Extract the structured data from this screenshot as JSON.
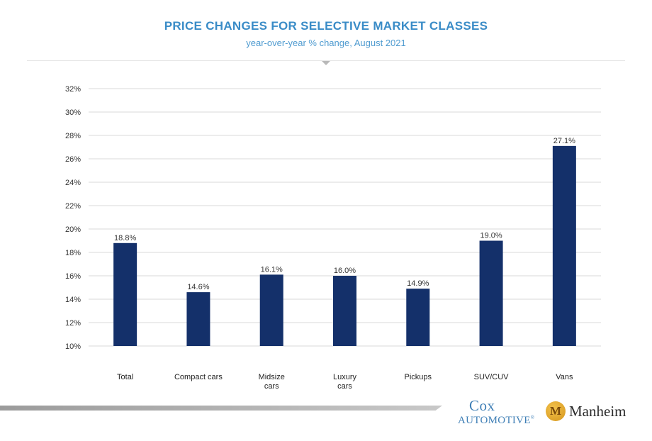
{
  "header": {
    "title": "PRICE CHANGES FOR SELECTIVE MARKET CLASSES",
    "subtitle": "year-over-year % change, August 2021"
  },
  "chart_data": {
    "type": "bar",
    "title": "PRICE CHANGES FOR SELECTIVE MARKET CLASSES",
    "subtitle": "year-over-year % change, August 2021",
    "categories": [
      [
        "Total"
      ],
      [
        "Compact cars"
      ],
      [
        "Midsize",
        "cars"
      ],
      [
        "Luxury",
        "cars"
      ],
      [
        "Pickups"
      ],
      [
        "SUV/CUV"
      ],
      [
        "Vans"
      ]
    ],
    "values": [
      18.8,
      14.6,
      16.1,
      16.0,
      14.9,
      19.0,
      27.1
    ],
    "value_labels": [
      "18.8%",
      "14.6%",
      "16.1%",
      "16.0%",
      "14.9%",
      "19.0%",
      "27.1%"
    ],
    "ylim": [
      10,
      32
    ],
    "yticks": [
      10,
      12,
      14,
      16,
      18,
      20,
      22,
      24,
      26,
      28,
      30,
      32
    ],
    "ytick_suffix": "%",
    "grid": true,
    "bar_color": "#14306a",
    "grid_color": "#d9d9d9",
    "xlabel": "",
    "ylabel": ""
  },
  "footer": {
    "cox_line1": "Cox",
    "cox_line2": "Automotive",
    "cox_mark": "®",
    "manheim_initial": "M",
    "manheim_name": "Manheim"
  }
}
